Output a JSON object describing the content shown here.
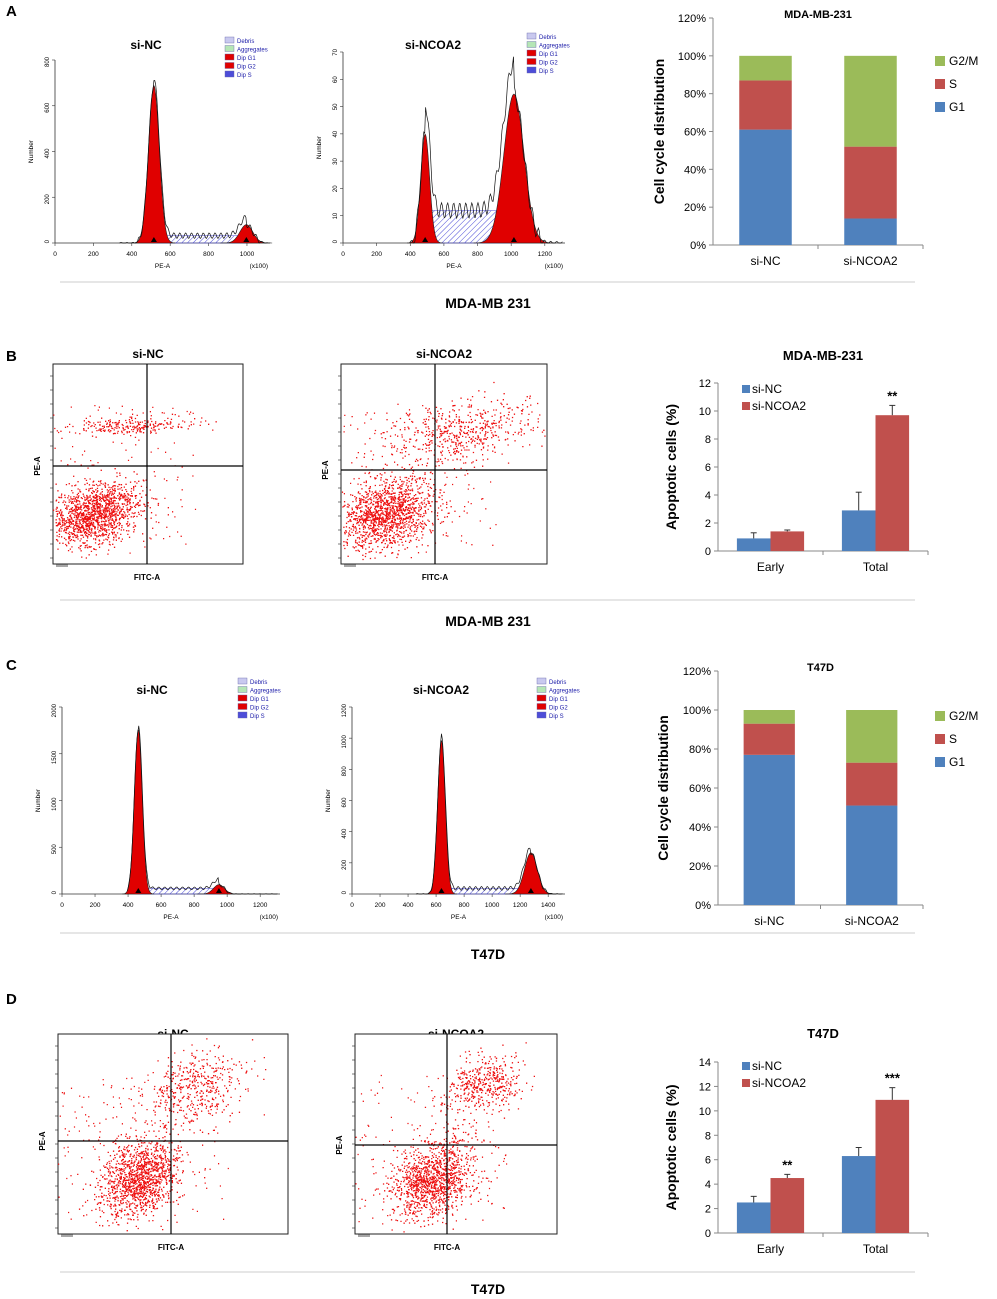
{
  "figure": {
    "panels": [
      {
        "letter": "A",
        "cell_line_label": "MDA-MB 231"
      },
      {
        "letter": "B",
        "cell_line_label": "MDA-MB 231"
      },
      {
        "letter": "C",
        "cell_line_label": "T47D"
      },
      {
        "letter": "D",
        "cell_line_label": "T47D"
      }
    ]
  },
  "histograms": [
    {
      "title": "si-NC",
      "xlabel": "PE-A",
      "ylabel": "Number",
      "xunit": "(x100)",
      "xticks": [
        "0",
        "200",
        "400",
        "600",
        "800",
        "1000"
      ],
      "yticks": [
        "0",
        "200",
        "400",
        "600",
        "800"
      ],
      "legend": [
        "Debris",
        "Aggregates",
        "Dip G1",
        "Dip G2",
        "Dip S"
      ]
    },
    {
      "title": "si-NCOA2",
      "xlabel": "PE-A",
      "ylabel": "Number",
      "xunit": "(x100)",
      "xticks": [
        "0",
        "200",
        "400",
        "600",
        "800",
        "1000",
        "1200"
      ],
      "yticks": [
        "0",
        "10",
        "20",
        "30",
        "40",
        "50",
        "60",
        "70"
      ],
      "legend": [
        "Debris",
        "Aggregates",
        "Dip G1",
        "Dip G2",
        "Dip S"
      ]
    },
    {
      "title": "si-NC",
      "xlabel": "PE-A",
      "ylabel": "Number",
      "xunit": "(x100)",
      "xticks": [
        "0",
        "200",
        "400",
        "600",
        "800",
        "1000",
        "1200"
      ],
      "yticks": [
        "0",
        "500",
        "1000",
        "1500",
        "2000"
      ],
      "legend": [
        "Debris",
        "Aggregates",
        "Dip G1",
        "Dip G2",
        "Dip S"
      ]
    },
    {
      "title": "si-NCOA2",
      "xlabel": "PE-A",
      "ylabel": "Number",
      "xunit": "(x100)",
      "xticks": [
        "0",
        "200",
        "400",
        "600",
        "800",
        "1000",
        "1200",
        "1400"
      ],
      "yticks": [
        "0",
        "200",
        "400",
        "600",
        "800",
        "1000",
        "1200"
      ],
      "legend": [
        "Debris",
        "Aggregates",
        "Dip G1",
        "Dip G2",
        "Dip S"
      ]
    }
  ],
  "scatters": [
    {
      "title": "si-NC",
      "xlabel": "FITC-A",
      "ylabel": "PE-A"
    },
    {
      "title": "si-NCOA2",
      "xlabel": "FITC-A",
      "ylabel": "PE-A"
    },
    {
      "title": "si-NC",
      "xlabel": "FITC-A",
      "ylabel": "PE-A"
    },
    {
      "title": "si-NCOA2",
      "xlabel": "FITC-A",
      "ylabel": "PE-A"
    }
  ],
  "chart_data": [
    {
      "type": "bar",
      "subtype": "stacked-percent",
      "title": "MDA-MB-231",
      "ylabel": "Cell cycle distribution",
      "xlabel": "",
      "categories": [
        "si-NC",
        "si-NCOA2"
      ],
      "yticks": [
        "0%",
        "20%",
        "40%",
        "60%",
        "80%",
        "100%",
        "120%"
      ],
      "ylim": [
        0,
        120
      ],
      "series": [
        {
          "name": "G1",
          "color": "#4F81BD",
          "values": [
            61,
            14
          ]
        },
        {
          "name": "S",
          "color": "#C0504D",
          "values": [
            26,
            38
          ]
        },
        {
          "name": "G2/M",
          "color": "#9BBB59",
          "values": [
            13,
            48
          ]
        }
      ]
    },
    {
      "type": "bar",
      "subtype": "grouped",
      "title": "MDA-MB-231",
      "ylabel": "Apoptotic cells (%)",
      "xlabel": "",
      "categories": [
        "Early",
        "Total"
      ],
      "yticks": [
        "0",
        "2",
        "4",
        "6",
        "8",
        "10",
        "12"
      ],
      "ylim": [
        0,
        12
      ],
      "series": [
        {
          "name": "si-NC",
          "color": "#4F81BD",
          "values": [
            0.9,
            2.9
          ],
          "errors": [
            0.4,
            1.3
          ]
        },
        {
          "name": "si-NCOA2",
          "color": "#C0504D",
          "values": [
            1.4,
            9.7
          ],
          "errors": [
            0.1,
            0.7
          ]
        }
      ],
      "annotations": [
        {
          "category": "Total",
          "series": "si-NCOA2",
          "text": "**"
        }
      ]
    },
    {
      "type": "bar",
      "subtype": "stacked-percent",
      "title": "T47D",
      "ylabel": "Cell cycle distribution",
      "xlabel": "",
      "categories": [
        "si-NC",
        "si-NCOA2"
      ],
      "yticks": [
        "0%",
        "20%",
        "40%",
        "60%",
        "80%",
        "100%",
        "120%"
      ],
      "ylim": [
        0,
        120
      ],
      "series": [
        {
          "name": "G1",
          "color": "#4F81BD",
          "values": [
            77,
            51
          ]
        },
        {
          "name": "S",
          "color": "#C0504D",
          "values": [
            16,
            22
          ]
        },
        {
          "name": "G2/M",
          "color": "#9BBB59",
          "values": [
            7,
            27
          ]
        }
      ]
    },
    {
      "type": "bar",
      "subtype": "grouped",
      "title": "T47D",
      "ylabel": "Apoptotic cells (%)",
      "xlabel": "",
      "categories": [
        "Early",
        "Total"
      ],
      "yticks": [
        "0",
        "2",
        "4",
        "6",
        "8",
        "10",
        "12",
        "14"
      ],
      "ylim": [
        0,
        14
      ],
      "series": [
        {
          "name": "si-NC",
          "color": "#4F81BD",
          "values": [
            2.5,
            6.3
          ],
          "errors": [
            0.5,
            0.7
          ]
        },
        {
          "name": "si-NCOA2",
          "color": "#C0504D",
          "values": [
            4.5,
            10.9
          ],
          "errors": [
            0.3,
            1.0
          ]
        }
      ],
      "annotations": [
        {
          "category": "Early",
          "series": "si-NCOA2",
          "text": "**"
        },
        {
          "category": "Total",
          "series": "si-NCOA2",
          "text": "***"
        }
      ]
    }
  ]
}
